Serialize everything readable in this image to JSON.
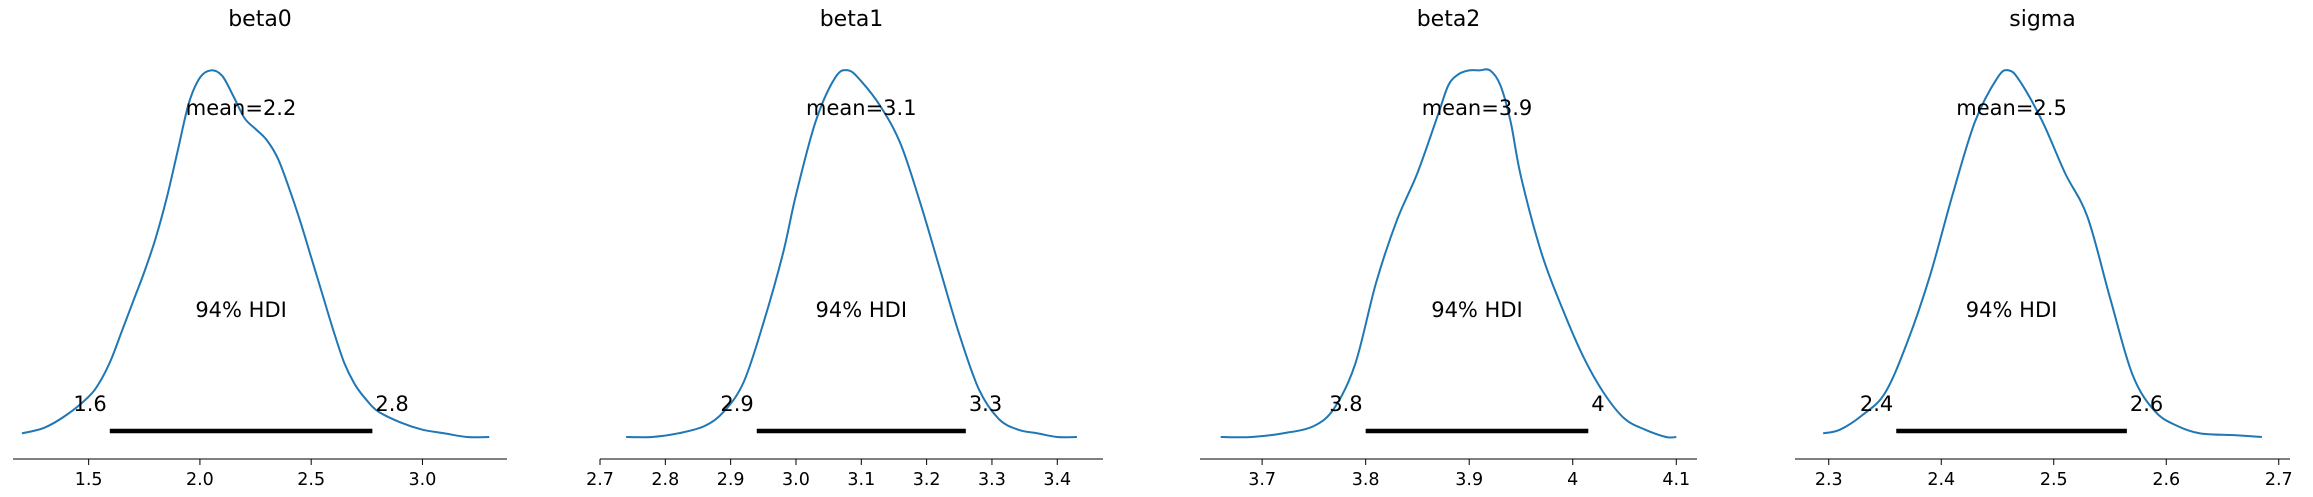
{
  "chart_data": [
    {
      "type": "area",
      "title": "beta0",
      "mean_text": "mean=2.2",
      "hdi_text": "94% HDI",
      "hdi": [
        1.6,
        2.8
      ],
      "hdi_line": [
        1.595,
        2.775
      ],
      "xlim": [
        1.16,
        3.38
      ],
      "xticks": [
        1.5,
        2.0,
        2.5,
        3.0
      ],
      "xtick_labels": [
        "1.5",
        "2.0",
        "2.5",
        "3.0"
      ],
      "ylim": [
        0,
        1.05
      ],
      "x": [
        1.2,
        1.3,
        1.4,
        1.5,
        1.55,
        1.6,
        1.65,
        1.7,
        1.75,
        1.8,
        1.85,
        1.9,
        1.95,
        2.0,
        2.05,
        2.1,
        2.15,
        2.2,
        2.25,
        2.3,
        2.35,
        2.4,
        2.45,
        2.5,
        2.55,
        2.6,
        2.65,
        2.7,
        2.75,
        2.8,
        2.9,
        3.0,
        3.1,
        3.2,
        3.3
      ],
      "density": [
        0.01,
        0.025,
        0.06,
        0.11,
        0.15,
        0.21,
        0.29,
        0.37,
        0.45,
        0.54,
        0.65,
        0.78,
        0.91,
        0.98,
        1.0,
        0.985,
        0.93,
        0.87,
        0.84,
        0.81,
        0.76,
        0.68,
        0.59,
        0.49,
        0.39,
        0.29,
        0.2,
        0.14,
        0.1,
        0.07,
        0.04,
        0.02,
        0.01,
        0.0,
        0.0
      ],
      "color": "#1f77b4"
    },
    {
      "type": "area",
      "title": "beta1",
      "mean_text": "mean=3.1",
      "hdi_text": "94% HDI",
      "hdi": [
        2.9,
        3.3
      ],
      "hdi_line": [
        2.94,
        3.26
      ],
      "xlim": [
        2.7,
        3.47
      ],
      "xticks": [
        2.7,
        2.8,
        2.9,
        3.0,
        3.1,
        3.2,
        3.3,
        3.4
      ],
      "xtick_labels": [
        "2.7",
        "2.8",
        "2.9",
        "3.0",
        "3.1",
        "3.2",
        "3.3",
        "3.4"
      ],
      "ylim": [
        0,
        1.05
      ],
      "x": [
        2.74,
        2.78,
        2.82,
        2.86,
        2.89,
        2.92,
        2.95,
        2.98,
        3.0,
        3.03,
        3.06,
        3.08,
        3.1,
        3.13,
        3.16,
        3.19,
        3.22,
        3.25,
        3.28,
        3.31,
        3.34,
        3.37,
        3.4,
        3.43
      ],
      "density": [
        0.0,
        0.0,
        0.01,
        0.03,
        0.07,
        0.15,
        0.31,
        0.5,
        0.66,
        0.86,
        0.98,
        1.0,
        0.97,
        0.9,
        0.8,
        0.64,
        0.46,
        0.28,
        0.13,
        0.05,
        0.02,
        0.01,
        0.0,
        0.0
      ],
      "color": "#1f77b4"
    },
    {
      "type": "area",
      "title": "beta2",
      "mean_text": "mean=3.9",
      "hdi_text": "94% HDI",
      "hdi": [
        3.8,
        4.0
      ],
      "hdi_line": [
        3.8,
        4.015
      ],
      "xlim": [
        3.64,
        4.12
      ],
      "xticks": [
        3.7,
        3.8,
        3.9,
        4.0,
        4.1
      ],
      "xtick_labels": [
        "3.7",
        "3.8",
        "3.9",
        "4",
        "4.1"
      ],
      "ylim": [
        0,
        1.05
      ],
      "x": [
        3.66,
        3.69,
        3.72,
        3.75,
        3.77,
        3.79,
        3.81,
        3.83,
        3.85,
        3.87,
        3.88,
        3.89,
        3.9,
        3.91,
        3.92,
        3.93,
        3.94,
        3.95,
        3.97,
        3.99,
        4.01,
        4.03,
        4.05,
        4.07,
        4.09,
        4.1
      ],
      "density": [
        0.0,
        0.0,
        0.01,
        0.03,
        0.08,
        0.2,
        0.42,
        0.59,
        0.72,
        0.88,
        0.96,
        0.99,
        1.0,
        1.0,
        1.0,
        0.96,
        0.86,
        0.71,
        0.5,
        0.35,
        0.22,
        0.12,
        0.05,
        0.02,
        0.0,
        0.0
      ],
      "color": "#1f77b4"
    },
    {
      "type": "area",
      "title": "sigma",
      "mean_text": "mean=2.5",
      "hdi_text": "94% HDI",
      "hdi": [
        2.4,
        2.6
      ],
      "hdi_line": [
        2.36,
        2.565
      ],
      "xlim": [
        2.27,
        2.71
      ],
      "xticks": [
        2.3,
        2.4,
        2.5,
        2.6,
        2.7
      ],
      "xtick_labels": [
        "2.3",
        "2.4",
        "2.5",
        "2.6",
        "2.7"
      ],
      "ylim": [
        0,
        1.05
      ],
      "x": [
        2.295,
        2.31,
        2.33,
        2.35,
        2.37,
        2.39,
        2.41,
        2.43,
        2.45,
        2.46,
        2.47,
        2.49,
        2.51,
        2.53,
        2.55,
        2.57,
        2.59,
        2.61,
        2.63,
        2.66,
        2.685
      ],
      "density": [
        0.01,
        0.02,
        0.06,
        0.12,
        0.26,
        0.44,
        0.66,
        0.86,
        0.98,
        1.0,
        0.97,
        0.86,
        0.72,
        0.6,
        0.38,
        0.17,
        0.07,
        0.03,
        0.01,
        0.005,
        0.0
      ],
      "color": "#1f77b4"
    }
  ]
}
